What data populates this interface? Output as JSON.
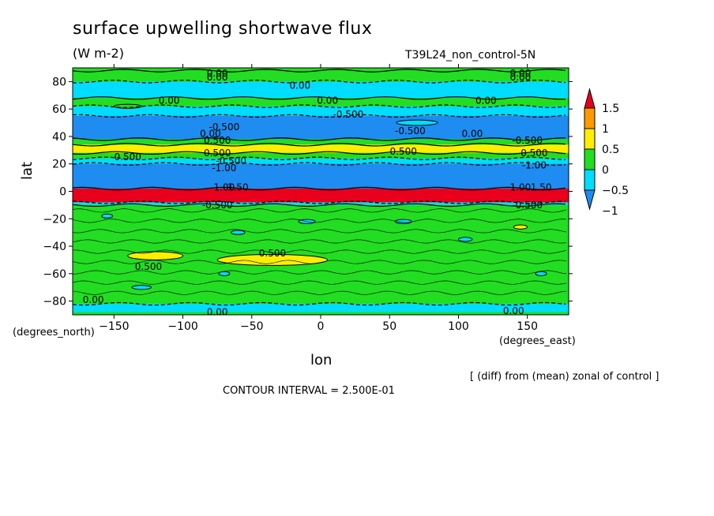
{
  "chart_data": {
    "type": "heatmap",
    "title": "surface upwelling shortwave flux",
    "units": "(W m-2)",
    "run_label": "T39L24_non_control-5N",
    "xlabel": "lon",
    "ylabel": "lat",
    "x_unit": "(degrees_east)",
    "y_unit": "(degrees_north)",
    "xlim": [
      -180,
      180
    ],
    "ylim": [
      -90,
      90
    ],
    "x_ticks": [
      -150,
      -100,
      -50,
      0,
      50,
      100,
      150
    ],
    "y_ticks": [
      -80,
      -60,
      -40,
      -20,
      0,
      20,
      40,
      60,
      80
    ],
    "note": "[ (diff) from (mean) zonal of control ]",
    "contour_interval": "CONTOUR INTERVAL = 2.500E-01",
    "colorbar": {
      "labels": [
        "1.5",
        "1",
        "0.5",
        "0",
        "-0.5",
        "-1"
      ],
      "colors": [
        "#e8001c",
        "#ff9900",
        "#ffee00",
        "#22dd22",
        "#00ddff",
        "#1e8cf0"
      ]
    },
    "bands": [
      {
        "lat_from": 80,
        "lat_to": 88,
        "level": "0 to 0.5",
        "color": "#22dd22"
      },
      {
        "lat_from": 68,
        "lat_to": 80,
        "level": "-0.5 to 0",
        "color": "#00ddff"
      },
      {
        "lat_from": 62,
        "lat_to": 68,
        "level": "0 to 0.5",
        "color": "#22dd22"
      },
      {
        "lat_from": 55,
        "lat_to": 62,
        "level": "-0.5 to 0",
        "color": "#00ddff"
      },
      {
        "lat_from": 38,
        "lat_to": 55,
        "level": "-1 to -0.5",
        "color": "#1e8cf0"
      },
      {
        "lat_from": 34,
        "lat_to": 38,
        "level": "0 to 0.5",
        "color": "#22dd22"
      },
      {
        "lat_from": 28,
        "lat_to": 34,
        "level": "0.5 to 1",
        "color": "#ffee00"
      },
      {
        "lat_from": 24,
        "lat_to": 28,
        "level": "0 to 0.5",
        "color": "#22dd22"
      },
      {
        "lat_from": 20,
        "lat_to": 24,
        "level": "-0.5 to 0",
        "color": "#00ddff"
      },
      {
        "lat_from": 2,
        "lat_to": 20,
        "level": "-1 to -0.5",
        "color": "#1e8cf0"
      },
      {
        "lat_from": -8,
        "lat_to": 2,
        "level": ">1.5",
        "color": "#e8001c"
      },
      {
        "lat_from": -10,
        "lat_to": -8,
        "level": "-0.5 to 0",
        "color": "#00ddff"
      },
      {
        "lat_from": -82,
        "lat_to": -10,
        "level": "0 to 0.5",
        "color": "#22dd22"
      },
      {
        "lat_from": -88,
        "lat_to": -82,
        "level": "-0.5 to 0",
        "color": "#00ddff"
      }
    ],
    "patches": [
      {
        "lon": -120,
        "lat": -47,
        "w": 40,
        "h": 6,
        "color": "#ffee00"
      },
      {
        "lon": -35,
        "lat": -50,
        "w": 80,
        "h": 8,
        "color": "#ffee00"
      },
      {
        "lon": -155,
        "lat": -18,
        "w": 8,
        "h": 3,
        "color": "#00ddff"
      },
      {
        "lon": -60,
        "lat": -30,
        "w": 10,
        "h": 3,
        "color": "#00ddff"
      },
      {
        "lon": -10,
        "lat": -22,
        "w": 12,
        "h": 3,
        "color": "#00ddff"
      },
      {
        "lon": 60,
        "lat": -22,
        "w": 12,
        "h": 3,
        "color": "#00ddff"
      },
      {
        "lon": 105,
        "lat": -35,
        "w": 10,
        "h": 3,
        "color": "#00ddff"
      },
      {
        "lon": 145,
        "lat": -26,
        "w": 10,
        "h": 3,
        "color": "#ffee00"
      },
      {
        "lon": -70,
        "lat": -60,
        "w": 8,
        "h": 3,
        "color": "#00ddff"
      },
      {
        "lon": 160,
        "lat": -60,
        "w": 8,
        "h": 3,
        "color": "#00ddff"
      },
      {
        "lon": -130,
        "lat": -70,
        "w": 14,
        "h": 3,
        "color": "#00ddff"
      },
      {
        "lon": -140,
        "lat": 62,
        "w": 20,
        "h": 3,
        "color": "#22dd22"
      },
      {
        "lon": 70,
        "lat": 50,
        "w": 30,
        "h": 4,
        "color": "#00ddff"
      }
    ],
    "contour_labels": [
      {
        "text": "0.00",
        "lon": -75,
        "lat": 86
      },
      {
        "text": "0.00",
        "lon": -75,
        "lat": 83
      },
      {
        "text": "0.00",
        "lon": 145,
        "lat": 86
      },
      {
        "text": "0.00",
        "lon": 145,
        "lat": 83
      },
      {
        "text": "0.00",
        "lon": -15,
        "lat": 77
      },
      {
        "text": "0.00",
        "lon": -110,
        "lat": 66
      },
      {
        "text": "0.00",
        "lon": 5,
        "lat": 66
      },
      {
        "text": "0.00",
        "lon": 120,
        "lat": 66
      },
      {
        "text": "-0.500",
        "lon": 20,
        "lat": 56
      },
      {
        "text": "-0.500",
        "lon": -70,
        "lat": 47
      },
      {
        "text": "-0.500",
        "lon": 65,
        "lat": 44
      },
      {
        "text": "-0.500",
        "lon": 150,
        "lat": 37
      },
      {
        "text": "0.00",
        "lon": 110,
        "lat": 42
      },
      {
        "text": "0.00",
        "lon": -80,
        "lat": 42
      },
      {
        "text": "0.500",
        "lon": -75,
        "lat": 37
      },
      {
        "text": "0.500",
        "lon": -140,
        "lat": 25
      },
      {
        "text": "0.500",
        "lon": -75,
        "lat": 28
      },
      {
        "text": "0.500",
        "lon": 60,
        "lat": 29
      },
      {
        "text": "0.500",
        "lon": 155,
        "lat": 28
      },
      {
        "text": "-0.500",
        "lon": -65,
        "lat": 22
      },
      {
        "text": "-1.00",
        "lon": -70,
        "lat": 17
      },
      {
        "text": "-1.00",
        "lon": 155,
        "lat": 19
      },
      {
        "text": "1.00",
        "lon": -70,
        "lat": 3
      },
      {
        "text": "1.50",
        "lon": -60,
        "lat": 3
      },
      {
        "text": "1.00",
        "lon": 145,
        "lat": 3
      },
      {
        "text": "1.50",
        "lon": 160,
        "lat": 3
      },
      {
        "text": "-0.500",
        "lon": -75,
        "lat": -10
      },
      {
        "text": "-0.500",
        "lon": 150,
        "lat": -10
      },
      {
        "text": "0.500",
        "lon": -35,
        "lat": -45
      },
      {
        "text": "0.500",
        "lon": -125,
        "lat": -55
      },
      {
        "text": "0.00",
        "lon": -165,
        "lat": -79
      },
      {
        "text": "0.00",
        "lon": -75,
        "lat": -88
      },
      {
        "text": "0.00",
        "lon": 140,
        "lat": -87
      }
    ]
  }
}
